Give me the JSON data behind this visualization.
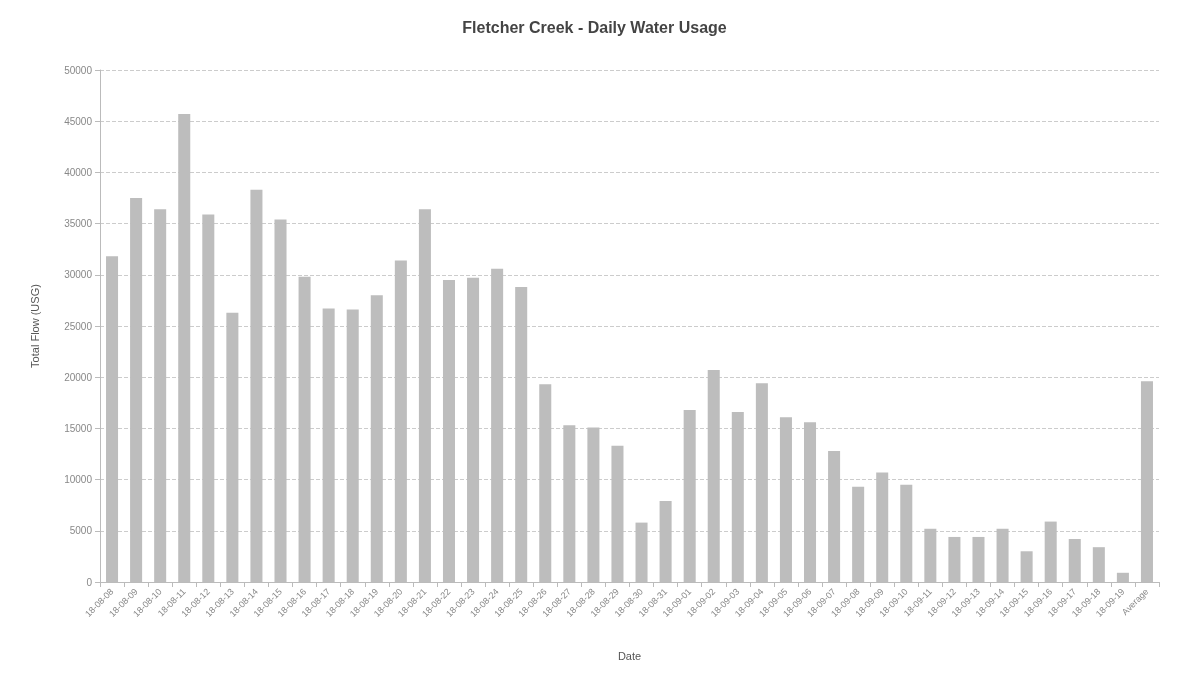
{
  "chart_data": {
    "type": "bar",
    "title": "Fletcher Creek - Daily Water Usage",
    "xlabel": "Date",
    "ylabel": "Total Flow (USG)",
    "categories": [
      "18-08-08",
      "18-08-09",
      "18-08-10",
      "18-08-11",
      "18-08-12",
      "18-08-13",
      "18-08-14",
      "18-08-15",
      "18-08-16",
      "18-08-17",
      "18-08-18",
      "18-08-19",
      "18-08-20",
      "18-08-21",
      "18-08-22",
      "18-08-23",
      "18-08-24",
      "18-08-25",
      "18-08-26",
      "18-08-27",
      "18-08-28",
      "18-08-29",
      "18-08-30",
      "18-08-31",
      "18-09-01",
      "18-09-02",
      "18-09-03",
      "18-09-04",
      "18-09-05",
      "18-09-06",
      "18-09-07",
      "18-09-08",
      "18-09-09",
      "18-09-10",
      "18-09-11",
      "18-09-12",
      "18-09-13",
      "18-09-14",
      "18-09-15",
      "18-09-16",
      "18-09-17",
      "18-09-18",
      "18-09-19",
      "Average"
    ],
    "values": [
      31800,
      37500,
      36400,
      45700,
      35900,
      26300,
      38300,
      35400,
      29800,
      26700,
      26600,
      28000,
      31400,
      36400,
      29500,
      29700,
      30600,
      28800,
      19300,
      15300,
      15100,
      13300,
      5800,
      7900,
      16800,
      20700,
      16600,
      19400,
      16100,
      15600,
      12800,
      9300,
      10700,
      9500,
      5200,
      4400,
      4400,
      5200,
      3000,
      5900,
      4200,
      3400,
      900,
      19600
    ],
    "color": "#bdbdbd",
    "ylim": [
      0,
      50000
    ],
    "yticks": [
      0,
      5000,
      10000,
      15000,
      20000,
      25000,
      30000,
      35000,
      40000,
      45000,
      50000
    ],
    "grid": "y"
  }
}
